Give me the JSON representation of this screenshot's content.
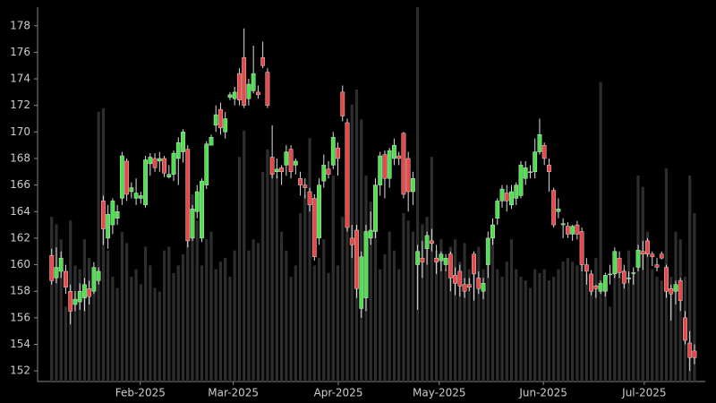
{
  "chart_data": {
    "type": "candlestick",
    "open": [
      160.7,
      159.0,
      159.5,
      159.5,
      158.0,
      157.0,
      157.2,
      157.5,
      158.2,
      158.0,
      158.8,
      164.8,
      162.0,
      163.0,
      163.5,
      165.0,
      167.8,
      165.5,
      165.0,
      165.0,
      164.5,
      167.6,
      168.0,
      167.8,
      168.0,
      166.6,
      166.8,
      168.0,
      168.5,
      168.7,
      162.0,
      164.0,
      162.0,
      166.0,
      169.0,
      170.5,
      171.7,
      170.0,
      172.6,
      172.5,
      174.4,
      175.6,
      172.5,
      173.1,
      173.0,
      175.6,
      174.5,
      168.1,
      167.0,
      167.3,
      167.5,
      168.7,
      167.5,
      166.5,
      166.0,
      165.5,
      165.0,
      162.0,
      166.3,
      167.2,
      167.5,
      168.8,
      173.0,
      170.7,
      162.0,
      162.6,
      156.7,
      157.5,
      162.0,
      162.5,
      166.0,
      168.3,
      166.5,
      168.0,
      168.2,
      169.9,
      168.0,
      165.5,
      160.0,
      160.5,
      161.2,
      161.8,
      160.5,
      160.3,
      160.0,
      160.8,
      159.2,
      159.5,
      158.5,
      158.5,
      160.8,
      159.0,
      158.0,
      160.0,
      162.0,
      163.5,
      164.8,
      165.4,
      164.5,
      165.0,
      165.2,
      166.5,
      167.0,
      167.0,
      168.5,
      169.0,
      167.5,
      165.6,
      164.0,
      163.0,
      162.9,
      162.3,
      163.0,
      162.5,
      160.0,
      159.3,
      158.4,
      158.0,
      158.0,
      159.3,
      159.3,
      160.5,
      159.5,
      159.0,
      159.4,
      159.8,
      161.0,
      161.8,
      160.8,
      160.0,
      160.8,
      159.8,
      158.2,
      158.0,
      158.8,
      156.0,
      154.1,
      153.5
    ],
    "high": [
      161.2,
      161.3,
      161.0,
      160.0,
      158.5,
      158.0,
      158.6,
      159.0,
      158.8,
      160.2,
      159.8,
      165.2,
      164.5,
      165.0,
      164.5,
      168.5,
      168.0,
      166.2,
      166.5,
      165.5,
      168.2,
      168.4,
      168.4,
      168.5,
      168.2,
      167.5,
      168.6,
      169.6,
      170.2,
      169.0,
      164.5,
      166.0,
      166.5,
      169.3,
      169.8,
      172.0,
      172.2,
      171.5,
      173.0,
      173.4,
      174.8,
      177.8,
      174.0,
      176.5,
      173.5,
      176.8,
      174.8,
      170.5,
      168.0,
      167.5,
      169.0,
      169.0,
      168.0,
      167.0,
      166.5,
      165.8,
      165.3,
      166.5,
      168.3,
      167.8,
      170.0,
      169.2,
      173.5,
      171.0,
      163.0,
      163.0,
      161.0,
      163.0,
      164.0,
      166.5,
      168.5,
      168.6,
      168.8,
      169.5,
      168.5,
      170.0,
      168.5,
      167.0,
      161.5,
      161.8,
      162.5,
      162.7,
      161.5,
      161.0,
      160.8,
      161.0,
      159.8,
      160.0,
      159.0,
      159.0,
      161.0,
      159.5,
      159.0,
      162.5,
      163.5,
      165.0,
      166.0,
      166.0,
      166.0,
      166.2,
      167.8,
      167.8,
      167.5,
      169.5,
      171.0,
      169.2,
      168.0,
      165.8,
      165.0,
      163.5,
      163.2,
      163.0,
      163.3,
      162.8,
      160.5,
      159.6,
      158.5,
      158.8,
      159.4,
      160.0,
      161.3,
      161.0,
      160.0,
      159.5,
      159.8,
      161.5,
      161.8,
      162.0,
      161.0,
      160.5,
      161.0,
      160.0,
      158.5,
      158.8,
      159.0,
      156.5,
      155.0,
      154.0
    ],
    "low": [
      158.5,
      158.6,
      159.0,
      157.8,
      155.5,
      156.5,
      156.6,
      156.5,
      157.0,
      157.8,
      158.5,
      161.5,
      161.2,
      162.3,
      163.0,
      164.5,
      164.8,
      165.0,
      164.5,
      164.6,
      164.3,
      166.7,
      167.0,
      167.0,
      166.6,
      166.5,
      166.3,
      166.0,
      167.7,
      161.3,
      161.8,
      163.5,
      161.7,
      165.7,
      169.0,
      170.0,
      169.8,
      169.5,
      172.4,
      172.0,
      172.0,
      171.8,
      172.0,
      172.9,
      172.5,
      174.8,
      171.8,
      166.5,
      166.5,
      166.0,
      166.7,
      166.5,
      166.8,
      165.2,
      165.0,
      164.0,
      160.3,
      161.5,
      165.8,
      166.5,
      167.2,
      166.7,
      170.8,
      162.5,
      160.5,
      157.5,
      156.0,
      156.5,
      161.5,
      162.0,
      165.2,
      165.0,
      165.8,
      167.5,
      167.5,
      165.0,
      164.0,
      164.5,
      156.6,
      159.0,
      160.0,
      161.0,
      159.3,
      159.5,
      159.5,
      158.0,
      157.7,
      157.6,
      157.5,
      158.0,
      157.3,
      157.8,
      157.4,
      159.0,
      161.5,
      163.0,
      164.3,
      164.0,
      164.2,
      164.5,
      165.0,
      166.0,
      166.5,
      166.5,
      168.3,
      167.5,
      165.5,
      162.8,
      163.5,
      162.0,
      162.0,
      161.8,
      161.9,
      159.5,
      158.5,
      157.7,
      157.5,
      157.8,
      157.6,
      158.5,
      159.0,
      159.0,
      158.2,
      158.6,
      158.5,
      159.5,
      159.6,
      160.6,
      159.9,
      159.5,
      160.4,
      157.5,
      155.8,
      157.0,
      156.5,
      154.0,
      152.0,
      152.5
    ],
    "close": [
      158.8,
      159.8,
      160.5,
      158.3,
      156.5,
      157.4,
      158.0,
      158.5,
      157.6,
      159.8,
      159.5,
      162.7,
      163.8,
      164.8,
      164.0,
      168.2,
      165.3,
      165.8,
      165.4,
      165.2,
      167.9,
      168.1,
      167.3,
      168.0,
      166.9,
      166.8,
      168.4,
      169.2,
      170.0,
      161.8,
      164.2,
      165.5,
      166.3,
      169.1,
      169.6,
      171.3,
      170.3,
      171.0,
      172.8,
      173.0,
      172.4,
      172.0,
      173.6,
      174.4,
      172.8,
      175.0,
      172.0,
      166.8,
      167.2,
      167.0,
      168.5,
      167.0,
      167.8,
      166.0,
      165.8,
      164.5,
      160.6,
      166.0,
      167.5,
      166.8,
      169.6,
      168.0,
      171.2,
      162.8,
      161.5,
      158.2,
      160.6,
      162.5,
      162.6,
      166.0,
      168.2,
      166.5,
      168.6,
      169.0,
      168.0,
      165.3,
      165.5,
      166.5,
      161.0,
      160.2,
      162.2,
      161.6,
      160.2,
      160.8,
      160.5,
      159.0,
      158.6,
      158.4,
      158.0,
      158.3,
      159.3,
      158.2,
      158.6,
      162.0,
      163.0,
      164.8,
      165.7,
      164.8,
      165.5,
      166.0,
      167.5,
      167.3,
      167.0,
      168.5,
      169.8,
      168.0,
      167.0,
      163.0,
      164.2,
      163.1,
      162.3,
      162.9,
      162.3,
      160.0,
      159.5,
      158.0,
      158.2,
      158.6,
      159.2,
      159.3,
      161.0,
      159.4,
      158.6,
      159.0,
      159.4,
      161.1,
      160.8,
      160.8,
      160.6,
      159.8,
      160.5,
      158.0,
      157.8,
      158.5,
      157.3,
      154.3,
      153.0,
      153.0
    ],
    "volume": [
      44,
      42,
      38,
      20,
      43,
      31,
      30,
      38,
      33,
      30,
      72,
      73,
      35,
      28,
      25,
      40,
      37,
      28,
      30,
      26,
      36,
      31,
      25,
      24,
      35,
      36,
      29,
      31,
      34,
      47,
      50,
      43,
      31,
      38,
      40,
      30,
      32,
      33,
      28,
      35,
      60,
      67,
      35,
      38,
      37,
      56,
      62,
      60,
      55,
      40,
      35,
      28,
      31,
      45,
      50,
      65,
      31,
      33,
      38,
      29,
      55,
      31,
      44,
      55,
      74,
      78,
      70,
      55,
      48,
      45,
      30,
      34,
      40,
      35,
      30,
      45,
      43,
      40,
      100,
      42,
      44,
      60,
      35,
      38,
      30,
      36,
      38,
      32,
      37,
      30,
      33,
      36,
      30,
      36,
      42,
      30,
      28,
      32,
      38,
      30,
      28,
      27,
      25,
      30,
      29,
      30,
      27,
      28,
      30,
      32,
      33,
      32,
      31,
      33,
      29,
      27,
      33,
      80,
      26,
      20,
      30,
      33,
      30,
      35,
      29,
      55,
      52,
      40,
      30,
      28,
      27,
      57,
      28,
      40,
      38,
      28,
      55,
      45
    ],
    "up_color": "#4fe04f",
    "down_color": "#e84848",
    "volume_color": "#2e2e2e",
    "xlim": [
      -3,
      139.3
    ],
    "xticks": [
      {
        "value": 18.9,
        "label": "Feb-2025"
      },
      {
        "value": 38.7,
        "label": "Mar-2025"
      },
      {
        "value": 61.1,
        "label": "Apr-2025"
      },
      {
        "value": 82.6,
        "label": "May-2025"
      },
      {
        "value": 104.8,
        "label": "Jun-2025"
      },
      {
        "value": 126.3,
        "label": "Jul-2025"
      }
    ],
    "ylim": [
      151.2,
      179.4
    ],
    "yticks": [
      152,
      154,
      156,
      158,
      160,
      162,
      164,
      166,
      168,
      170,
      172,
      174,
      176,
      178
    ],
    "y2lim": [
      0,
      100
    ]
  }
}
